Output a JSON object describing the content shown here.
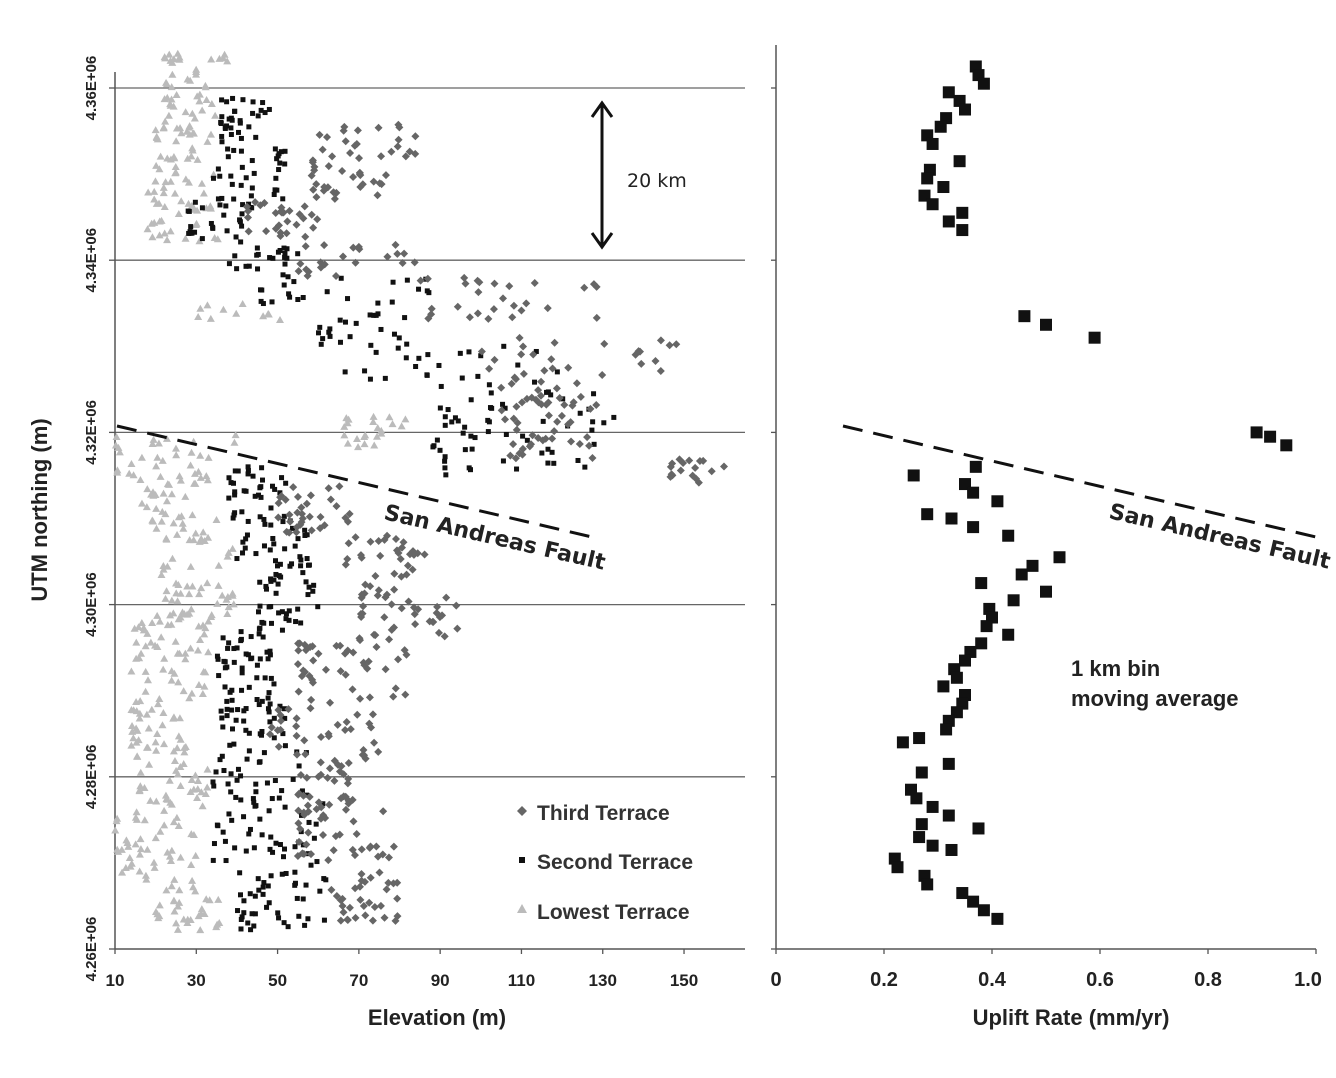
{
  "chart_data": [
    {
      "type": "scatter",
      "xlabel": "Elevation  (m)",
      "ylabel": "UTM northing (m)",
      "xlim": [
        10,
        165
      ],
      "ylim": [
        4260000,
        4364000
      ],
      "x_ticks": [
        "10",
        "30",
        "50",
        "70",
        "90",
        "110",
        "130",
        "150"
      ],
      "y_ticks": [
        "4.26E+06",
        "4.28E+06",
        "4.30E+06",
        "4.32E+06",
        "4.34E+06",
        "4.36E+06"
      ],
      "grid": "horizontal",
      "legend_placement": "bottom-right",
      "series": [
        {
          "name": "Third Terrace",
          "marker": "diamond",
          "color": "#666666",
          "clusters": [
            {
              "y": [
                4352000,
                4356000
              ],
              "x": [
                60,
                84
              ]
            },
            {
              "y": [
                4347000,
                4352000
              ],
              "x": [
                58,
                78
              ]
            },
            {
              "y": [
                4342000,
                4347000
              ],
              "x": [
                42,
                60
              ]
            },
            {
              "y": [
                4338000,
                4342000
              ],
              "x": [
                55,
                85
              ]
            },
            {
              "y": [
                4333000,
                4338000
              ],
              "x": [
                85,
                132
              ]
            },
            {
              "y": [
                4327000,
                4331000
              ],
              "x": [
                100,
                152
              ]
            },
            {
              "y": [
                4322000,
                4327000
              ],
              "x": [
                105,
                130
              ]
            },
            {
              "y": [
                4317000,
                4322000
              ],
              "x": [
                105,
                128
              ]
            },
            {
              "y": [
                4314000,
                4317000
              ],
              "x": [
                146,
                160
              ]
            },
            {
              "y": [
                4308000,
                4314000
              ],
              "x": [
                50,
                68
              ]
            },
            {
              "y": [
                4303000,
                4308000
              ],
              "x": [
                66,
                88
              ]
            },
            {
              "y": [
                4296000,
                4303000
              ],
              "x": [
                70,
                95
              ]
            },
            {
              "y": [
                4288000,
                4296000
              ],
              "x": [
                55,
                82
              ]
            },
            {
              "y": [
                4282000,
                4288000
              ],
              "x": [
                48,
                75
              ]
            },
            {
              "y": [
                4276000,
                4282000
              ],
              "x": [
                55,
                70
              ]
            },
            {
              "y": [
                4270000,
                4276000
              ],
              "x": [
                55,
                80
              ]
            },
            {
              "y": [
                4263000,
                4269000
              ],
              "x": [
                62,
                80
              ]
            }
          ]
        },
        {
          "name": "Second Terrace",
          "marker": "square",
          "color": "#111111",
          "clusters": [
            {
              "y": [
                4353000,
                4359000
              ],
              "x": [
                36,
                48
              ]
            },
            {
              "y": [
                4347000,
                4353000
              ],
              "x": [
                34,
                52
              ]
            },
            {
              "y": [
                4342000,
                4347000
              ],
              "x": [
                28,
                44
              ]
            },
            {
              "y": [
                4338000,
                4342000
              ],
              "x": [
                38,
                55
              ]
            },
            {
              "y": [
                4334000,
                4338000
              ],
              "x": [
                45,
                90
              ]
            },
            {
              "y": [
                4330000,
                4334000
              ],
              "x": [
                60,
                82
              ]
            },
            {
              "y": [
                4326000,
                4330000
              ],
              "x": [
                65,
                120
              ]
            },
            {
              "y": [
                4321000,
                4326000
              ],
              "x": [
                90,
                135
              ]
            },
            {
              "y": [
                4315000,
                4321000
              ],
              "x": [
                88,
                130
              ]
            },
            {
              "y": [
                4310000,
                4316000
              ],
              "x": [
                38,
                52
              ]
            },
            {
              "y": [
                4305000,
                4310000
              ],
              "x": [
                40,
                58
              ]
            },
            {
              "y": [
                4297000,
                4305000
              ],
              "x": [
                45,
                60
              ]
            },
            {
              "y": [
                4290000,
                4297000
              ],
              "x": [
                35,
                52
              ]
            },
            {
              "y": [
                4283000,
                4290000
              ],
              "x": [
                36,
                52
              ]
            },
            {
              "y": [
                4277000,
                4283000
              ],
              "x": [
                34,
                58
              ]
            },
            {
              "y": [
                4270000,
                4277000
              ],
              "x": [
                34,
                62
              ]
            },
            {
              "y": [
                4262000,
                4270000
              ],
              "x": [
                40,
                62
              ]
            }
          ]
        },
        {
          "name": "Lowest Terrace",
          "marker": "triangle",
          "color": "#bbbbbb",
          "clusters": [
            {
              "y": [
                4356000,
                4364000
              ],
              "x": [
                22,
                38
              ]
            },
            {
              "y": [
                4350000,
                4356000
              ],
              "x": [
                20,
                34
              ]
            },
            {
              "y": [
                4342000,
                4350000
              ],
              "x": [
                18,
                36
              ]
            },
            {
              "y": [
                4333000,
                4335000
              ],
              "x": [
                30,
                52
              ]
            },
            {
              "y": [
                4315000,
                4320000
              ],
              "x": [
                10,
                40
              ]
            },
            {
              "y": [
                4318000,
                4322000
              ],
              "x": [
                66,
                82
              ]
            },
            {
              "y": [
                4308000,
                4315000
              ],
              "x": [
                16,
                36
              ]
            },
            {
              "y": [
                4298000,
                4308000
              ],
              "x": [
                20,
                40
              ]
            },
            {
              "y": [
                4289000,
                4298000
              ],
              "x": [
                14,
                34
              ]
            },
            {
              "y": [
                4282000,
                4289000
              ],
              "x": [
                14,
                30
              ]
            },
            {
              "y": [
                4276000,
                4282000
              ],
              "x": [
                16,
                34
              ]
            },
            {
              "y": [
                4268000,
                4276000
              ],
              "x": [
                10,
                30
              ]
            },
            {
              "y": [
                4262000,
                4268000
              ],
              "x": [
                20,
                36
              ]
            }
          ]
        }
      ]
    },
    {
      "type": "scatter",
      "xlabel": "Uplift Rate (mm/yr)",
      "ylabel": "",
      "xlim": [
        0,
        1.0
      ],
      "ylim": [
        4260000,
        4364000
      ],
      "x_ticks": [
        "0",
        "0.2",
        "0.4",
        "0.6",
        "0.8",
        "1.0"
      ],
      "series": [
        {
          "name": "1 km bin moving average",
          "marker": "square",
          "color": "#111111",
          "points": [
            [
              0.37,
              4362500
            ],
            [
              0.375,
              4361500
            ],
            [
              0.385,
              4360500
            ],
            [
              0.32,
              4359500
            ],
            [
              0.34,
              4358500
            ],
            [
              0.35,
              4357500
            ],
            [
              0.315,
              4356500
            ],
            [
              0.305,
              4355500
            ],
            [
              0.28,
              4354500
            ],
            [
              0.29,
              4353500
            ],
            [
              0.34,
              4351500
            ],
            [
              0.285,
              4350500
            ],
            [
              0.28,
              4349500
            ],
            [
              0.31,
              4348500
            ],
            [
              0.275,
              4347500
            ],
            [
              0.29,
              4346500
            ],
            [
              0.345,
              4345500
            ],
            [
              0.32,
              4344500
            ],
            [
              0.345,
              4343500
            ],
            [
              0.46,
              4333500
            ],
            [
              0.5,
              4332500
            ],
            [
              0.59,
              4331000
            ],
            [
              0.89,
              4320000
            ],
            [
              0.915,
              4319500
            ],
            [
              0.945,
              4318500
            ],
            [
              0.37,
              4316000
            ],
            [
              0.255,
              4315000
            ],
            [
              0.35,
              4314000
            ],
            [
              0.365,
              4313000
            ],
            [
              0.41,
              4312000
            ],
            [
              0.28,
              4310500
            ],
            [
              0.325,
              4310000
            ],
            [
              0.365,
              4309000
            ],
            [
              0.43,
              4308000
            ],
            [
              0.525,
              4305500
            ],
            [
              0.475,
              4304500
            ],
            [
              0.455,
              4303500
            ],
            [
              0.38,
              4302500
            ],
            [
              0.5,
              4301500
            ],
            [
              0.44,
              4300500
            ],
            [
              0.395,
              4299500
            ],
            [
              0.4,
              4298500
            ],
            [
              0.39,
              4297500
            ],
            [
              0.43,
              4296500
            ],
            [
              0.38,
              4295500
            ],
            [
              0.36,
              4294500
            ],
            [
              0.35,
              4293500
            ],
            [
              0.33,
              4292500
            ],
            [
              0.335,
              4291500
            ],
            [
              0.31,
              4290500
            ],
            [
              0.35,
              4289500
            ],
            [
              0.345,
              4288500
            ],
            [
              0.335,
              4287500
            ],
            [
              0.32,
              4286500
            ],
            [
              0.315,
              4285500
            ],
            [
              0.265,
              4284500
            ],
            [
              0.235,
              4284000
            ],
            [
              0.32,
              4281500
            ],
            [
              0.27,
              4280500
            ],
            [
              0.25,
              4278500
            ],
            [
              0.26,
              4277500
            ],
            [
              0.29,
              4276500
            ],
            [
              0.32,
              4275500
            ],
            [
              0.27,
              4274500
            ],
            [
              0.375,
              4274000
            ],
            [
              0.265,
              4273000
            ],
            [
              0.29,
              4272000
            ],
            [
              0.325,
              4271500
            ],
            [
              0.22,
              4270500
            ],
            [
              0.225,
              4269500
            ],
            [
              0.275,
              4268500
            ],
            [
              0.28,
              4267500
            ],
            [
              0.345,
              4266500
            ],
            [
              0.365,
              4265500
            ],
            [
              0.385,
              4264500
            ],
            [
              0.41,
              4263500
            ]
          ]
        }
      ]
    }
  ],
  "annotations": {
    "scale_bar": "20 km",
    "fault_left": "San Andreas Fault",
    "fault_right": "San Andreas Fault",
    "bin_line1": "1 km bin",
    "bin_line2": "moving average"
  },
  "legend": {
    "items": [
      "Third Terrace",
      "Second Terrace",
      "Lowest Terrace"
    ]
  }
}
